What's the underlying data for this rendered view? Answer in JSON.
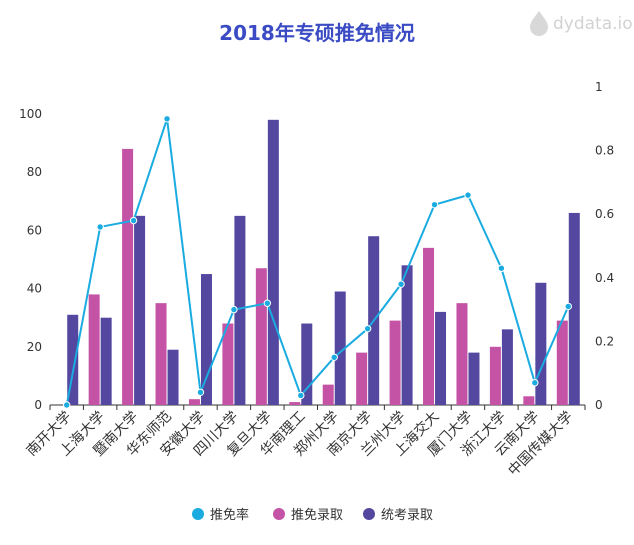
{
  "watermark": {
    "text": "dydata.io"
  },
  "chart_data": {
    "type": "bar",
    "title": "2018年专硕推免情况",
    "categories": [
      "南开大学",
      "上海大学",
      "暨南大学",
      "华东师范",
      "安徽大学",
      "四川大学",
      "复旦大学",
      "华南理工",
      "郑州大学",
      "南京大学",
      "兰州大学",
      "上海交大",
      "厦门大学",
      "浙江大学",
      "云南大学",
      "中国传媒大学"
    ],
    "series": [
      {
        "name": "推免率",
        "kind": "line",
        "axis": "right",
        "color": "#1aabe0",
        "values": [
          0.0,
          0.56,
          0.58,
          0.9,
          0.04,
          0.3,
          0.32,
          0.03,
          0.15,
          0.24,
          0.38,
          0.63,
          0.66,
          0.43,
          0.07,
          0.31
        ]
      },
      {
        "name": "推免录取",
        "kind": "bar",
        "axis": "left",
        "color": "#c453a6",
        "values": [
          0,
          38,
          88,
          35,
          2,
          28,
          47,
          1,
          7,
          18,
          29,
          54,
          35,
          20,
          3,
          29
        ]
      },
      {
        "name": "统考录取",
        "kind": "bar",
        "axis": "left",
        "color": "#5347a0",
        "values": [
          31,
          30,
          65,
          19,
          45,
          65,
          98,
          28,
          39,
          58,
          48,
          32,
          18,
          26,
          42,
          66
        ]
      }
    ],
    "y_left": {
      "min": 0,
      "max": 100,
      "ticks": [
        0,
        20,
        40,
        60,
        80,
        100
      ],
      "labels": [
        "0",
        "20",
        "40",
        "60",
        "80",
        "100"
      ]
    },
    "y_right": {
      "min": 0,
      "max": 1,
      "ticks": [
        0,
        0.2,
        0.4,
        0.6,
        0.8,
        1
      ],
      "labels": [
        "0",
        "0.2",
        "0.4",
        "0.6",
        "0.8",
        "1"
      ]
    },
    "legend_position": "bottom-center"
  }
}
